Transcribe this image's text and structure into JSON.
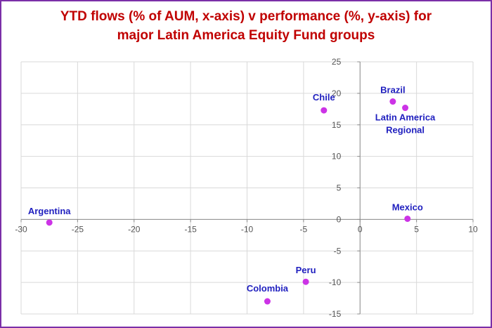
{
  "title_lines": [
    "YTD flows (% of AUM, x-axis) v performance (%, y-axis) for",
    "major Latin America Equity Fund groups"
  ],
  "colors": {
    "frame": "#7b2fa8",
    "title": "#c00000",
    "point": "#cc33e6",
    "label": "#1f1fbf",
    "grid": "#d9d9d9",
    "axis": "#8c8c8c"
  },
  "chart_data": {
    "type": "scatter",
    "title": "YTD flows (% of AUM, x-axis) v performance (%, y-axis) for major Latin America Equity Fund groups",
    "xlabel": "",
    "ylabel": "",
    "xlim": [
      -30,
      10
    ],
    "ylim": [
      -15,
      25
    ],
    "xticks": [
      -30,
      -25,
      -20,
      -15,
      -10,
      -5,
      0,
      5,
      10
    ],
    "yticks": [
      -15,
      -10,
      -5,
      0,
      5,
      10,
      15,
      20,
      25
    ],
    "grid": true,
    "legend": "none",
    "points": [
      {
        "label": [
          "Argentina"
        ],
        "x": -27.5,
        "y": -0.5,
        "label_pos": "above"
      },
      {
        "label": [
          "Chile"
        ],
        "x": -3.2,
        "y": 17.3,
        "label_pos": "above-left"
      },
      {
        "label": [
          "Brazil"
        ],
        "x": 2.9,
        "y": 18.7,
        "label_pos": "above"
      },
      {
        "label": [
          "Latin America",
          "Regional"
        ],
        "x": 4.0,
        "y": 17.7,
        "label_pos": "below"
      },
      {
        "label": [
          "Mexico"
        ],
        "x": 4.2,
        "y": 0.1,
        "label_pos": "above"
      },
      {
        "label": [
          "Peru"
        ],
        "x": -4.8,
        "y": -9.9,
        "label_pos": "above"
      },
      {
        "label": [
          "Colombia"
        ],
        "x": -8.2,
        "y": -13.0,
        "label_pos": "above-left"
      }
    ]
  }
}
